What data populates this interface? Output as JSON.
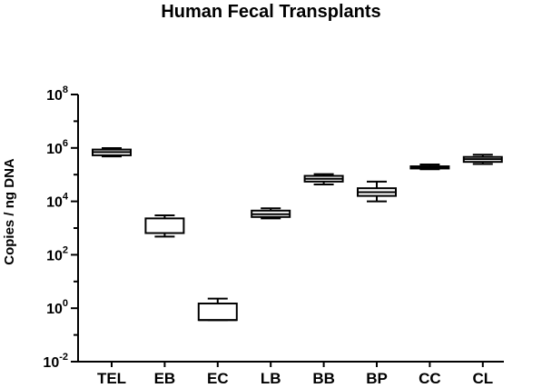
{
  "chart_data": {
    "type": "box",
    "title": "Human Fecal Transplants",
    "xlabel": "",
    "ylabel": "Copies / ng DNA",
    "yscale": "log",
    "ylim": [
      0.01,
      100000000
    ],
    "yticks": [
      {
        "base": "10",
        "exp": "8",
        "value": 100000000
      },
      {
        "base": "10",
        "exp": "6",
        "value": 1000000
      },
      {
        "base": "10",
        "exp": "4",
        "value": 10000
      },
      {
        "base": "10",
        "exp": "2",
        "value": 100
      },
      {
        "base": "10",
        "exp": "0",
        "value": 1
      },
      {
        "base": "10",
        "exp": "-2",
        "value": 0.01
      }
    ],
    "categories": [
      "TEL",
      "EB",
      "EC",
      "LB",
      "BB",
      "BP",
      "CC",
      "CL"
    ],
    "boxes": [
      {
        "category": "TEL",
        "min": 480000,
        "q1": 530000,
        "median": 700000,
        "q3": 870000,
        "max": 980000
      },
      {
        "category": "EB",
        "min": 480,
        "q1": 650,
        "median": 650,
        "q3": 2300,
        "max": 3000
      },
      {
        "category": "EC",
        "min": 0.36,
        "q1": 0.36,
        "median": 0.36,
        "q3": 1.5,
        "max": 2.3
      },
      {
        "category": "LB",
        "min": 2300,
        "q1": 2600,
        "median": 3300,
        "q3": 4500,
        "max": 5500
      },
      {
        "category": "BB",
        "min": 43000,
        "q1": 55000,
        "median": 70000,
        "q3": 90000,
        "max": 105000
      },
      {
        "category": "BP",
        "min": 10000,
        "q1": 16000,
        "median": 22000,
        "q3": 31000,
        "max": 55000
      },
      {
        "category": "CC",
        "min": 160000,
        "q1": 170000,
        "median": 190000,
        "q3": 205000,
        "max": 240000
      },
      {
        "category": "CL",
        "min": 250000,
        "q1": 300000,
        "median": 380000,
        "q3": 460000,
        "max": 560000
      }
    ]
  }
}
